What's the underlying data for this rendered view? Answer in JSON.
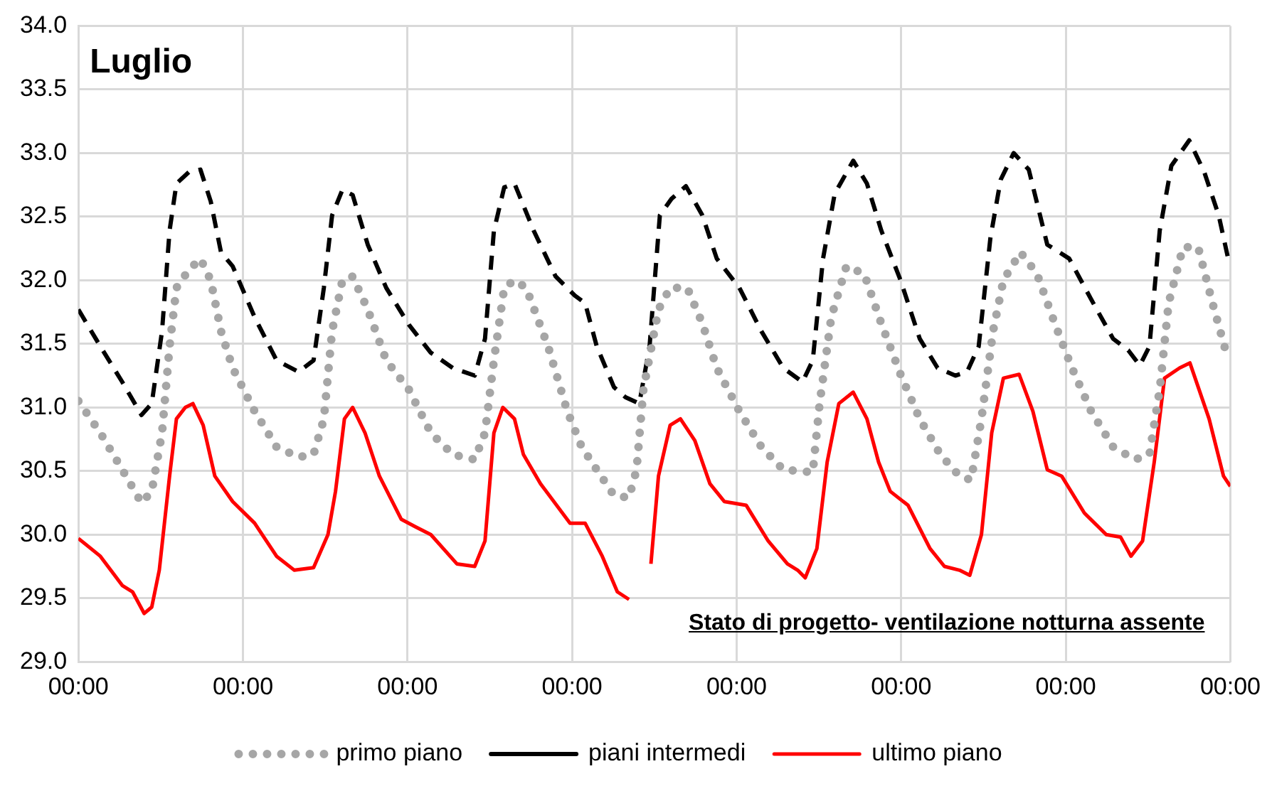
{
  "chart_data": {
    "type": "line",
    "title": "Luglio",
    "annotations": [
      "Stato di progetto- ventilazione notturna assente"
    ],
    "xlim": [
      "--07-01T00:00",
      "--07-08T00:00"
    ],
    "xticks": [
      {
        "value": "--07-01T00:00",
        "label": "00:00"
      },
      {
        "value": "--07-02T00:00",
        "label": "00:00"
      },
      {
        "value": "--07-03T00:00",
        "label": "00:00"
      },
      {
        "value": "--07-04T00:00",
        "label": "00:00"
      },
      {
        "value": "--07-05T00:00",
        "label": "00:00"
      },
      {
        "value": "--07-06T00:00",
        "label": "00:00"
      },
      {
        "value": "--07-07T00:00",
        "label": "00:00"
      },
      {
        "value": "--07-08T00:00",
        "label": "00:00"
      }
    ],
    "ylim": [
      29,
      34
    ],
    "yticks": [
      {
        "value": 29,
        "label": "29.0"
      },
      {
        "value": 29.5,
        "label": "29.5"
      },
      {
        "value": 30,
        "label": "30.0"
      },
      {
        "value": 30.5,
        "label": "30.5"
      },
      {
        "value": 31,
        "label": "31.0"
      },
      {
        "value": 31.5,
        "label": "31.5"
      },
      {
        "value": 32,
        "label": "32.0"
      },
      {
        "value": 32.5,
        "label": "32.5"
      },
      {
        "value": 33,
        "label": "33.0"
      },
      {
        "value": 33.5,
        "label": "33.5"
      },
      {
        "value": 34,
        "label": "34.0"
      }
    ],
    "grid": true,
    "legend": "bottom",
    "marker": "none",
    "series": [
      {
        "name": "primo piano",
        "color": "#a6a6a6",
        "line_style": "dotted",
        "x": [
          "--07-01T00:00",
          "--07-01T03:12",
          "--07-01T06:24",
          "--07-01T09:12",
          "--07-01T10:42",
          "--07-01T12:12",
          "--07-01T13:18",
          "--07-01T14:18",
          "--07-01T16:06",
          "--07-01T17:48",
          "--07-01T19:18",
          "--07-01T20:48",
          "--07-01T22:30",
          "--07-02T01:42",
          "--07-02T04:54",
          "--07-02T08:06",
          "--07-02T10:18",
          "--07-02T11:48",
          "--07-02T13:00",
          "--07-02T14:30",
          "--07-02T16:00",
          "--07-02T18:12",
          "--07-02T20:54",
          "--07-03T00:12",
          "--07-03T03:24",
          "--07-03T06:36",
          "--07-03T09:48",
          "--07-03T11:18",
          "--07-03T12:36",
          "--07-03T14:06",
          "--07-03T15:36",
          "--07-03T17:18",
          "--07-03T20:30",
          "--07-03T23:18",
          "--07-04T01:24",
          "--07-04T03:36",
          "--07-04T06:06",
          "--07-04T08:18",
          "--07-04T09:24",
          "--07-04T10:24",
          "--07-04T12:36",
          "--07-04T14:18",
          "--07-04T16:48",
          "--07-04T19:00",
          "--07-04T21:06",
          "--07-05T00:24",
          "--07-05T03:36",
          "--07-05T06:48",
          "--07-05T11:06",
          "--07-05T12:06",
          "--07-05T13:48",
          "--07-05T16:00",
          "--07-05T18:36",
          "--07-05T21:06",
          "--07-05T23:54",
          "--07-06T02:42",
          "--07-06T05:42",
          "--07-06T08:30",
          "--07-06T10:12",
          "--07-06T11:42",
          "--07-06T13:24",
          "--07-06T14:54",
          "--07-06T17:24",
          "--07-06T19:48",
          "--07-06T22:24",
          "--07-07T00:54",
          "--07-07T03:42",
          "--07-07T06:54",
          "--07-07T10:06",
          "--07-07T12:12",
          "--07-07T13:42",
          "--07-07T15:00",
          "--07-07T17:06",
          "--07-07T19:18",
          "--07-07T21:24",
          "--07-07T23:36"
        ],
        "values": [
          31.05,
          30.8,
          30.51,
          30.25,
          30.34,
          30.8,
          31.48,
          31.94,
          32.08,
          32.17,
          32.0,
          31.6,
          31.31,
          30.97,
          30.69,
          30.61,
          30.63,
          30.91,
          31.6,
          32.0,
          32.03,
          31.77,
          31.37,
          31.14,
          30.8,
          30.63,
          30.59,
          30.8,
          31.37,
          31.94,
          32.0,
          31.94,
          31.48,
          30.97,
          30.69,
          30.51,
          30.31,
          30.29,
          30.51,
          31.14,
          31.77,
          31.94,
          31.94,
          31.66,
          31.31,
          30.97,
          30.69,
          30.51,
          30.49,
          31.03,
          31.71,
          32.11,
          32.05,
          31.66,
          31.26,
          30.91,
          30.63,
          30.46,
          30.43,
          30.91,
          31.6,
          32.0,
          32.22,
          32.05,
          31.66,
          31.31,
          30.97,
          30.69,
          30.59,
          30.63,
          31.14,
          31.82,
          32.26,
          32.26,
          31.82,
          31.39
        ]
      },
      {
        "name": "piani intermedi",
        "color": "#000000",
        "line_style": "dashed",
        "x": [
          "--07-01T00:00",
          "--07-01T03:12",
          "--07-01T06:24",
          "--07-01T09:12",
          "--07-01T10:42",
          "--07-01T12:12",
          "--07-01T13:18",
          "--07-01T14:18",
          "--07-01T16:06",
          "--07-01T17:48",
          "--07-01T19:18",
          "--07-01T20:48",
          "--07-01T22:30",
          "--07-02T01:42",
          "--07-02T04:54",
          "--07-02T08:06",
          "--07-02T10:18",
          "--07-02T11:48",
          "--07-02T13:00",
          "--07-02T14:30",
          "--07-02T16:00",
          "--07-02T18:12",
          "--07-02T20:54",
          "--07-03T00:12",
          "--07-03T03:24",
          "--07-03T06:36",
          "--07-03T09:48",
          "--07-03T11:18",
          "--07-03T12:36",
          "--07-03T14:06",
          "--07-03T15:36",
          "--07-03T18:24",
          "--07-03T21:36",
          "--07-04T00:24",
          "--07-04T01:54",
          "--07-04T03:36",
          "--07-04T06:06",
          "--07-04T07:48",
          "--07-04T09:48",
          "--07-04T11:18",
          "--07-04T12:48",
          "--07-04T14:30",
          "--07-04T16:36",
          "--07-04T19:00",
          "--07-04T21:06",
          "--07-05T00:24",
          "--07-05T03:36",
          "--07-05T06:48",
          "--07-05T09:36",
          "--07-05T11:06",
          "--07-05T12:36",
          "--07-05T14:18",
          "--07-05T17:00",
          "--07-05T19:00",
          "--07-05T21:06",
          "--07-05T23:54",
          "--07-06T02:42",
          "--07-06T05:18",
          "--07-06T07:54",
          "--07-06T09:36",
          "--07-06T11:18",
          "--07-06T13:00",
          "--07-06T14:30",
          "--07-06T16:24",
          "--07-06T18:36",
          "--07-06T21:18",
          "--07-07T00:30",
          "--07-07T03:42",
          "--07-07T06:54",
          "--07-07T09:06",
          "--07-07T10:48",
          "--07-07T12:12",
          "--07-07T13:42",
          "--07-07T15:24",
          "--07-07T18:00",
          "--07-07T20:12",
          "--07-07T22:18",
          "--07-07T23:36"
        ],
        "values": [
          31.77,
          31.48,
          31.2,
          30.94,
          31.03,
          31.6,
          32.39,
          32.76,
          32.85,
          32.87,
          32.62,
          32.22,
          32.11,
          31.71,
          31.37,
          31.28,
          31.37,
          31.94,
          32.51,
          32.71,
          32.67,
          32.28,
          31.94,
          31.65,
          31.43,
          31.31,
          31.25,
          31.54,
          32.39,
          32.73,
          32.76,
          32.39,
          32.03,
          31.88,
          31.82,
          31.48,
          31.16,
          31.08,
          31.03,
          31.48,
          32.51,
          32.64,
          32.74,
          32.51,
          32.17,
          31.94,
          31.6,
          31.31,
          31.2,
          31.37,
          32.17,
          32.68,
          32.94,
          32.76,
          32.39,
          32.0,
          31.54,
          31.31,
          31.25,
          31.28,
          31.48,
          32.33,
          32.79,
          33.0,
          32.87,
          32.28,
          32.17,
          31.85,
          31.54,
          31.45,
          31.33,
          31.48,
          32.39,
          32.9,
          33.1,
          32.85,
          32.51,
          32.19
        ]
      },
      {
        "name": "ultimo piano",
        "color": "#ff0000",
        "line_style": "solid",
        "x": [
          "--07-01T00:00",
          "--07-01T03:12",
          "--07-01T06:24",
          "--07-01T07:54",
          "--07-01T09:36",
          "--07-01T10:42",
          "--07-01T11:48",
          "--07-01T13:18",
          "--07-01T14:18",
          "--07-01T15:36",
          "--07-01T16:42",
          "--07-01T18:12",
          "--07-01T19:54",
          "--07-01T22:30",
          "--07-02T01:42",
          "--07-02T04:54",
          "--07-02T07:30",
          "--07-02T10:18",
          "--07-02T12:24",
          "--07-02T13:30",
          "--07-02T14:48",
          "--07-02T16:00",
          "--07-02T17:48",
          "--07-02T19:54",
          "--07-02T23:06",
          "--07-03T01:12",
          "--07-03T03:24",
          "--07-03T07:12",
          "--07-03T09:48",
          "--07-03T11:18",
          "--07-03T12:36",
          "--07-03T13:54",
          "--07-03T15:36",
          "--07-03T16:54",
          "--07-03T19:24",
          "--07-03T23:42",
          "--07-04T01:54",
          "--07-04T04:24",
          "--07-04T06:36",
          "--07-04T08:18",
          "--07-04T09:24",
          "--07-04T11:30",
          "--07-04T12:36",
          "--07-04T14:18",
          "--07-04T15:48",
          "--07-04T17:54",
          "--07-04T20:06",
          "--07-04T22:12",
          "--07-05T01:24",
          "--07-05T04:36",
          "--07-05T07:24",
          "--07-05T08:54",
          "--07-05T10:00",
          "--07-05T11:42",
          "--07-05T13:12",
          "--07-05T14:54",
          "--07-05T17:00",
          "--07-05T19:00",
          "--07-05T20:42",
          "--07-05T22:24",
          "--07-06T01:00",
          "--07-06T04:12",
          "--07-06T06:18",
          "--07-06T08:30",
          "--07-06T10:00",
          "--07-06T11:42",
          "--07-06T13:12",
          "--07-06T14:54",
          "--07-06T17:12",
          "--07-06T19:12",
          "--07-06T21:18",
          "--07-06T23:24",
          "--07-07T02:42",
          "--07-07T05:54",
          "--07-07T08:00",
          "--07-07T09:30",
          "--07-07T11:12",
          "--07-07T12:54",
          "--07-07T14:24",
          "--07-07T16:36",
          "--07-07T18:06",
          "--07-07T20:54",
          "--07-07T23:00",
          "--07-08T00:00"
        ],
        "values": [
          29.97,
          29.83,
          29.6,
          29.55,
          29.38,
          29.43,
          29.72,
          30.46,
          30.91,
          31.0,
          31.03,
          30.86,
          30.46,
          30.26,
          30.09,
          29.83,
          29.72,
          29.74,
          30.0,
          30.34,
          30.91,
          31.0,
          30.8,
          30.46,
          30.12,
          30.06,
          30.0,
          29.77,
          29.75,
          29.95,
          30.8,
          31.0,
          30.91,
          30.63,
          30.4,
          30.09,
          30.09,
          29.83,
          29.55,
          29.49,
          null,
          29.77,
          30.46,
          30.86,
          30.91,
          30.74,
          30.4,
          30.26,
          30.23,
          29.95,
          29.77,
          29.72,
          29.66,
          29.89,
          30.57,
          31.03,
          31.12,
          30.91,
          30.57,
          30.34,
          30.23,
          29.89,
          29.75,
          29.72,
          29.68,
          30.0,
          30.8,
          31.23,
          31.26,
          30.97,
          30.51,
          30.46,
          30.17,
          30.0,
          29.98,
          29.83,
          29.95,
          30.57,
          31.23,
          31.31,
          31.35,
          30.91,
          30.46,
          30.38
        ]
      }
    ]
  }
}
